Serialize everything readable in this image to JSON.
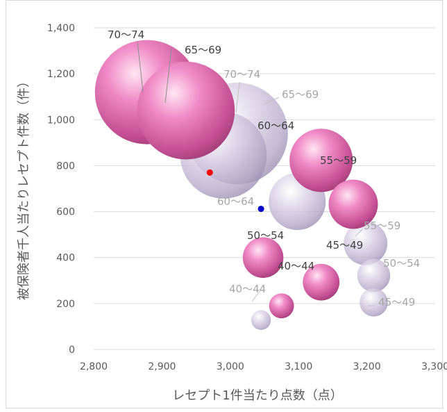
{
  "chart_data": {
    "type": "bubble",
    "title": "",
    "xlabel": "レセプト1件当たり点数（点）",
    "ylabel": "被保険者千人当たりレセプト件数（件）",
    "xlim": [
      2800,
      3300
    ],
    "ylim": [
      0,
      1400
    ],
    "x_ticks": [
      "2,800",
      "2,900",
      "3,000",
      "3,100",
      "3,200",
      "3,300"
    ],
    "y_ticks": [
      "0",
      "200",
      "400",
      "600",
      "800",
      "1,000",
      "1,200",
      "1,400"
    ],
    "x_tick_values": [
      2800,
      2900,
      3000,
      3100,
      3200,
      3300
    ],
    "y_tick_values": [
      0,
      200,
      400,
      600,
      800,
      1000,
      1200,
      1400
    ],
    "grid": "horizontal",
    "legend": "none",
    "series": [
      {
        "color": "#e27ab8",
        "label_color": "#404040",
        "points": [
          {
            "label": "40～44",
            "x": 3075,
            "y": 190,
            "size": 2.4
          },
          {
            "label": "45～49",
            "x": 3133,
            "y": 293,
            "size": 5.2
          },
          {
            "label": "50～54",
            "x": 3048,
            "y": 400,
            "size": 6.4
          },
          {
            "label": "55～59",
            "x": 3180,
            "y": 632,
            "size": 9.4
          },
          {
            "label": "60～64",
            "x": 3133,
            "y": 823,
            "size": 15.5
          },
          {
            "label": "65～69",
            "x": 2935,
            "y": 1040,
            "size": 37
          },
          {
            "label": "70～74",
            "x": 2878,
            "y": 1120,
            "size": 42
          }
        ]
      },
      {
        "color": "#c2b6d3",
        "label_color": "#a6a6a6",
        "points": [
          {
            "label": "40～44",
            "x": 3045,
            "y": 128,
            "size": 1.5
          },
          {
            "label": "45～49",
            "x": 3210,
            "y": 205,
            "size": 3.1
          },
          {
            "label": "50～54",
            "x": 3210,
            "y": 322,
            "size": 4.2
          },
          {
            "label": "55～59",
            "x": 3198,
            "y": 462,
            "size": 7.4
          },
          {
            "label": "60～64",
            "x": 3098,
            "y": 644,
            "size": 12.6
          },
          {
            "label": "65～69",
            "x": 3010,
            "y": 940,
            "size": 40
          },
          {
            "label": "70～74",
            "x": 2990,
            "y": 845,
            "size": 29
          }
        ]
      }
    ],
    "markers": [
      {
        "x": 2970,
        "y": 770,
        "color": "#ff0000"
      },
      {
        "x": 3045,
        "y": 612,
        "color": "#0000cc"
      }
    ]
  }
}
